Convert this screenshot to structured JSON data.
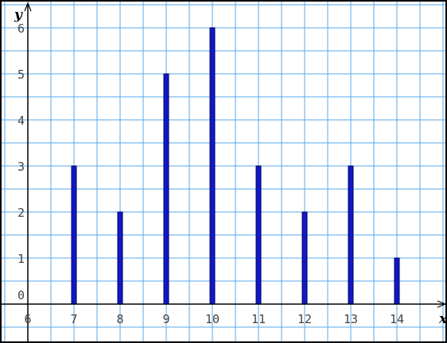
{
  "chart_data": {
    "type": "bar",
    "categories": [
      "7",
      "8",
      "9",
      "10",
      "11",
      "12",
      "13",
      "14"
    ],
    "x": [
      7,
      8,
      9,
      10,
      11,
      12,
      13,
      14
    ],
    "values": [
      3,
      2,
      5,
      6,
      3,
      2,
      3,
      1
    ],
    "xlabel": "x",
    "ylabel": "y",
    "xlim": [
      6,
      15
    ],
    "ylim": [
      0,
      6.5
    ],
    "x_ticks": [
      "6",
      "7",
      "8",
      "9",
      "10",
      "11",
      "12",
      "13",
      "14"
    ],
    "y_ticks": [
      "0",
      "1",
      "2",
      "3",
      "4",
      "5",
      "6"
    ],
    "grid": true,
    "bar_color": "#1018c8",
    "grid_color": "#5aa8e8",
    "axis_color": "#000000"
  }
}
